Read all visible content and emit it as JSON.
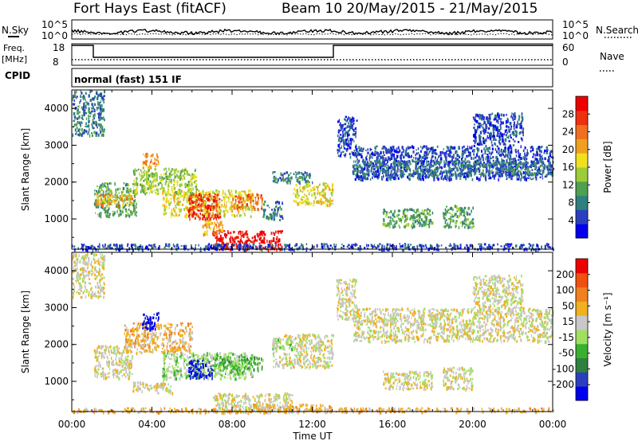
{
  "header": {
    "site": "Fort Hays East (fitACF)",
    "beam_range": "Beam 10  20/May/2015 - 21/May/2015",
    "mode_line": "normal (fast) 151 IF"
  },
  "aux_labels": {
    "nsky": "N.Sky",
    "nsearch": "N.Search",
    "freq": "Freq.",
    "freq_unit": "[MHz]",
    "nave": "Nave",
    "cpid": "CPID",
    "noise_top": "10^5",
    "noise_bottom": "10^0",
    "freq_top": "18",
    "freq_bottom": "8",
    "nave_top": "60",
    "nave_bottom": "0"
  },
  "chart_data": [
    {
      "type": "heatmap",
      "name": "power-panel",
      "ylabel": "Slant Range [km]",
      "ylim": [
        180,
        4500
      ],
      "yticks": [
        1000,
        2000,
        3000,
        4000
      ],
      "xlim": [
        0,
        24
      ],
      "colorbar_label": "Power [dB]",
      "colorbar_ticks": [
        "4",
        "8",
        "12",
        "16",
        "20",
        "24",
        "28"
      ],
      "colors": [
        "#0000ee",
        "#2a3fbf",
        "#2f7f7f",
        "#4fa04f",
        "#9ccc38",
        "#f0e020",
        "#f0a020",
        "#f07020",
        "#ee3010",
        "#ee0000"
      ],
      "regions": [
        {
          "x0": 0.0,
          "x1": 1.6,
          "y0": 3300,
          "y1": 4500,
          "level": 2
        },
        {
          "x0": 1.1,
          "x1": 3.2,
          "y0": 1100,
          "y1": 2000,
          "level": 3
        },
        {
          "x0": 1.2,
          "x1": 3.0,
          "y0": 1400,
          "y1": 1700,
          "level": 6
        },
        {
          "x0": 3.0,
          "x1": 6.2,
          "y0": 1700,
          "y1": 2400,
          "level": 4
        },
        {
          "x0": 3.5,
          "x1": 4.3,
          "y0": 2400,
          "y1": 2800,
          "level": 6
        },
        {
          "x0": 4.5,
          "x1": 9.0,
          "y0": 1100,
          "y1": 1800,
          "level": 5
        },
        {
          "x0": 5.8,
          "x1": 7.4,
          "y0": 1000,
          "y1": 1700,
          "level": 8
        },
        {
          "x0": 8.0,
          "x1": 9.5,
          "y0": 1300,
          "y1": 1700,
          "level": 7
        },
        {
          "x0": 7.0,
          "x1": 10.5,
          "y0": 180,
          "y1": 700,
          "level": 9
        },
        {
          "x0": 6.5,
          "x1": 7.5,
          "y0": 600,
          "y1": 1000,
          "level": 6
        },
        {
          "x0": 9.5,
          "x1": 10.5,
          "y0": 1000,
          "y1": 1500,
          "level": 2
        },
        {
          "x0": 10.0,
          "x1": 12.0,
          "y0": 2000,
          "y1": 2300,
          "level": 2
        },
        {
          "x0": 11.0,
          "x1": 13.0,
          "y0": 1400,
          "y1": 2000,
          "level": 5
        },
        {
          "x0": 13.2,
          "x1": 14.2,
          "y0": 2700,
          "y1": 3800,
          "level": 1
        },
        {
          "x0": 14.0,
          "x1": 24.0,
          "y0": 2100,
          "y1": 3000,
          "level": 1
        },
        {
          "x0": 14.0,
          "x1": 24.0,
          "y0": 2200,
          "y1": 2600,
          "level": 2
        },
        {
          "x0": 15.5,
          "x1": 18.0,
          "y0": 800,
          "y1": 1300,
          "level": 3
        },
        {
          "x0": 18.5,
          "x1": 20.0,
          "y0": 800,
          "y1": 1400,
          "level": 3
        },
        {
          "x0": 20.0,
          "x1": 22.5,
          "y0": 3000,
          "y1": 3900,
          "level": 1
        },
        {
          "x0": 0.0,
          "x1": 24.0,
          "y0": 180,
          "y1": 350,
          "level": 1
        }
      ]
    },
    {
      "type": "heatmap",
      "name": "velocity-panel",
      "ylabel": "Slant Range [km]",
      "ylim": [
        180,
        4500
      ],
      "yticks": [
        1000,
        2000,
        3000,
        4000
      ],
      "xlim": [
        0,
        24
      ],
      "colorbar_label": "Velocity [m s⁻¹]",
      "colorbar_ticks": [
        "200",
        "100",
        "50",
        "15",
        "-15",
        "-50",
        "-100",
        "-200"
      ],
      "colors": [
        "#0000ee",
        "#2a3fbf",
        "#2f7f3f",
        "#39b030",
        "#a0e060",
        "#c8c8c8",
        "#f0b020",
        "#f08020",
        "#f05010",
        "#ee0000"
      ],
      "regions": [
        {
          "x0": 0.0,
          "x1": 1.6,
          "y0": 3300,
          "y1": 4500,
          "level": 5
        },
        {
          "x0": 1.1,
          "x1": 3.0,
          "y0": 1100,
          "y1": 2000,
          "level": 5
        },
        {
          "x0": 2.6,
          "x1": 6.0,
          "y0": 1800,
          "y1": 2600,
          "level": 6
        },
        {
          "x0": 3.5,
          "x1": 4.3,
          "y0": 2400,
          "y1": 2900,
          "level": 0
        },
        {
          "x0": 4.5,
          "x1": 9.0,
          "y0": 1100,
          "y1": 1800,
          "level": 4
        },
        {
          "x0": 5.8,
          "x1": 7.0,
          "y0": 1100,
          "y1": 1600,
          "level": 0
        },
        {
          "x0": 7.0,
          "x1": 9.5,
          "y0": 1300,
          "y1": 1700,
          "level": 3
        },
        {
          "x0": 3.0,
          "x1": 5.0,
          "y0": 700,
          "y1": 1000,
          "level": 5
        },
        {
          "x0": 7.0,
          "x1": 11.0,
          "y0": 180,
          "y1": 700,
          "level": 5
        },
        {
          "x0": 9.0,
          "x1": 13.0,
          "y0": 180,
          "y1": 400,
          "level": 6
        },
        {
          "x0": 10.0,
          "x1": 13.0,
          "y0": 1400,
          "y1": 2300,
          "level": 5
        },
        {
          "x0": 10.0,
          "x1": 11.0,
          "y0": 1900,
          "y1": 2200,
          "level": 4
        },
        {
          "x0": 13.2,
          "x1": 14.2,
          "y0": 2700,
          "y1": 3800,
          "level": 5
        },
        {
          "x0": 14.0,
          "x1": 24.0,
          "y0": 2100,
          "y1": 3000,
          "level": 5
        },
        {
          "x0": 15.5,
          "x1": 18.0,
          "y0": 800,
          "y1": 1300,
          "level": 5
        },
        {
          "x0": 18.5,
          "x1": 20.0,
          "y0": 800,
          "y1": 1400,
          "level": 5
        },
        {
          "x0": 20.0,
          "x1": 22.5,
          "y0": 3000,
          "y1": 3900,
          "level": 5
        },
        {
          "x0": 0.0,
          "x1": 24.0,
          "y0": 180,
          "y1": 300,
          "level": 6
        }
      ]
    }
  ],
  "x_axis": {
    "label": "Time UT",
    "ticks": [
      "00:00",
      "04:00",
      "08:00",
      "12:00",
      "16:00",
      "20:00",
      "00:00"
    ]
  }
}
